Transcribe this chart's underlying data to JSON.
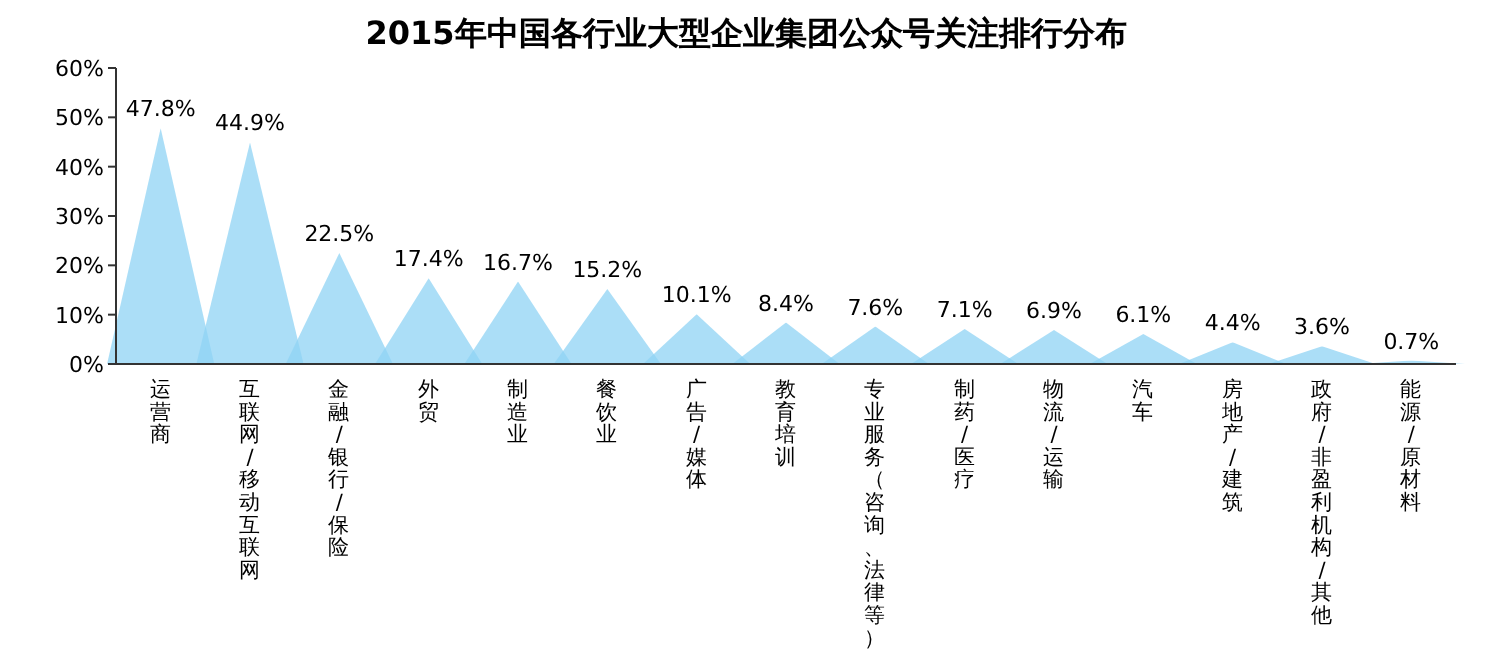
{
  "chart_data": {
    "type": "bar",
    "title": "2015年中国各行业大型企业集团公众号关注排行分布",
    "categories": [
      "运营商",
      "互联网/移动互联网",
      "金融/银行/保险",
      "外贸",
      "制造业",
      "餐饮业",
      "广告/媒体",
      "教育培训",
      "专业服务（咨询、法律等）",
      "制药/医疗",
      "物流/运输",
      "汽车",
      "房地产/建筑",
      "政府/非盈利机构/其他",
      "能源/原材料"
    ],
    "values": [
      47.8,
      44.9,
      22.5,
      17.4,
      16.7,
      15.2,
      10.1,
      8.4,
      7.6,
      7.1,
      6.9,
      6.1,
      4.4,
      3.6,
      0.7
    ],
    "value_labels": [
      "47.8%",
      "44.9%",
      "22.5%",
      "17.4%",
      "16.7%",
      "15.2%",
      "10.1%",
      "8.4%",
      "7.6%",
      "7.1%",
      "6.9%",
      "6.1%",
      "4.4%",
      "3.6%",
      "0.7%"
    ],
    "color": "#8fd3f4",
    "ylim": [
      0,
      60
    ],
    "yticks": [
      {
        "value": 0,
        "label": "0%"
      },
      {
        "value": 10,
        "label": "10%"
      },
      {
        "value": 20,
        "label": "20%"
      },
      {
        "value": 30,
        "label": "30%"
      },
      {
        "value": 40,
        "label": "40%"
      },
      {
        "value": 50,
        "label": "50%"
      },
      {
        "value": 60,
        "label": "60%"
      }
    ],
    "grid": false
  }
}
